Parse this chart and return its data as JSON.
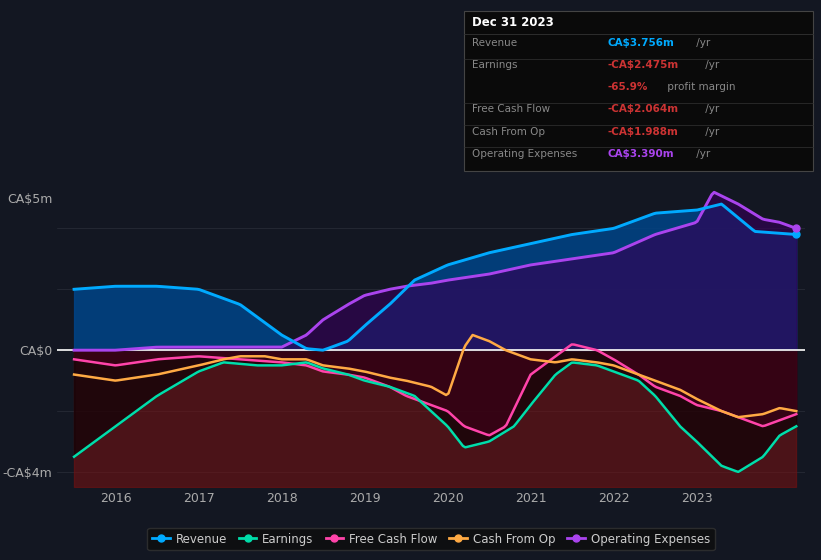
{
  "bg_color": "#131722",
  "plot_bg_color": "#131722",
  "info_box": {
    "date": "Dec 31 2023",
    "rows": [
      {
        "label": "Revenue",
        "value": "CA$3.756m",
        "value_color": "#00aaff",
        "suffix": " /yr"
      },
      {
        "label": "Earnings",
        "value": "-CA$2.475m",
        "value_color": "#cc3333",
        "suffix": " /yr"
      },
      {
        "label": "",
        "value": "-65.9%",
        "value_color": "#cc3333",
        "suffix": " profit margin"
      },
      {
        "label": "Free Cash Flow",
        "value": "-CA$2.064m",
        "value_color": "#cc3333",
        "suffix": " /yr"
      },
      {
        "label": "Cash From Op",
        "value": "-CA$1.988m",
        "value_color": "#cc3333",
        "suffix": " /yr"
      },
      {
        "label": "Operating Expenses",
        "value": "CA$3.390m",
        "value_color": "#aa44ee",
        "suffix": " /yr"
      }
    ]
  },
  "yticks": [
    -4,
    0,
    5
  ],
  "ytick_labels": [
    "-CA$4m",
    "CA$0",
    "CA$5m"
  ],
  "ylim": [
    -4.5,
    5.8
  ],
  "xlim": [
    2015.3,
    2024.3
  ],
  "xticks": [
    2016,
    2017,
    2018,
    2019,
    2020,
    2021,
    2022,
    2023
  ],
  "zero_line_color": "#ffffff",
  "grid_color": "#2a2e39",
  "revenue_color": "#00aaff",
  "earnings_color": "#00ddaa",
  "fcf_color": "#ff44aa",
  "cashop_color": "#ffaa44",
  "opex_color": "#aa44ee",
  "legend_items": [
    {
      "label": "Revenue",
      "color": "#00aaff"
    },
    {
      "label": "Earnings",
      "color": "#00ddaa"
    },
    {
      "label": "Free Cash Flow",
      "color": "#ff44aa"
    },
    {
      "label": "Cash From Op",
      "color": "#ffaa44"
    },
    {
      "label": "Operating Expenses",
      "color": "#aa44ee"
    }
  ],
  "revenue_pts": [
    [
      2015.5,
      2.0
    ],
    [
      2016.0,
      2.1
    ],
    [
      2016.5,
      2.1
    ],
    [
      2017.0,
      2.0
    ],
    [
      2017.5,
      1.5
    ],
    [
      2018.0,
      0.5
    ],
    [
      2018.3,
      0.05
    ],
    [
      2018.5,
      0.0
    ],
    [
      2018.8,
      0.3
    ],
    [
      2019.0,
      0.8
    ],
    [
      2019.3,
      1.5
    ],
    [
      2019.6,
      2.3
    ],
    [
      2020.0,
      2.8
    ],
    [
      2020.5,
      3.2
    ],
    [
      2021.0,
      3.5
    ],
    [
      2021.5,
      3.8
    ],
    [
      2022.0,
      4.0
    ],
    [
      2022.5,
      4.5
    ],
    [
      2023.0,
      4.6
    ],
    [
      2023.3,
      4.8
    ],
    [
      2023.7,
      3.9
    ],
    [
      2024.2,
      3.8
    ]
  ],
  "earnings_pts": [
    [
      2015.5,
      -3.5
    ],
    [
      2016.0,
      -2.5
    ],
    [
      2016.5,
      -1.5
    ],
    [
      2017.0,
      -0.7
    ],
    [
      2017.3,
      -0.4
    ],
    [
      2017.7,
      -0.5
    ],
    [
      2018.0,
      -0.5
    ],
    [
      2018.3,
      -0.4
    ],
    [
      2018.5,
      -0.6
    ],
    [
      2018.8,
      -0.8
    ],
    [
      2019.0,
      -1.0
    ],
    [
      2019.3,
      -1.2
    ],
    [
      2019.6,
      -1.5
    ],
    [
      2020.0,
      -2.5
    ],
    [
      2020.2,
      -3.2
    ],
    [
      2020.5,
      -3.0
    ],
    [
      2020.8,
      -2.5
    ],
    [
      2021.0,
      -1.8
    ],
    [
      2021.3,
      -0.8
    ],
    [
      2021.5,
      -0.4
    ],
    [
      2021.8,
      -0.5
    ],
    [
      2022.0,
      -0.7
    ],
    [
      2022.3,
      -1.0
    ],
    [
      2022.5,
      -1.5
    ],
    [
      2022.8,
      -2.5
    ],
    [
      2023.0,
      -3.0
    ],
    [
      2023.3,
      -3.8
    ],
    [
      2023.5,
      -4.0
    ],
    [
      2023.8,
      -3.5
    ],
    [
      2024.0,
      -2.8
    ],
    [
      2024.2,
      -2.5
    ]
  ],
  "fcf_pts": [
    [
      2015.5,
      -0.3
    ],
    [
      2016.0,
      -0.5
    ],
    [
      2016.5,
      -0.3
    ],
    [
      2017.0,
      -0.2
    ],
    [
      2017.5,
      -0.3
    ],
    [
      2018.0,
      -0.4
    ],
    [
      2018.3,
      -0.5
    ],
    [
      2018.5,
      -0.7
    ],
    [
      2018.8,
      -0.8
    ],
    [
      2019.0,
      -0.9
    ],
    [
      2019.3,
      -1.2
    ],
    [
      2019.5,
      -1.5
    ],
    [
      2019.8,
      -1.8
    ],
    [
      2020.0,
      -2.0
    ],
    [
      2020.2,
      -2.5
    ],
    [
      2020.5,
      -2.8
    ],
    [
      2020.7,
      -2.5
    ],
    [
      2021.0,
      -0.8
    ],
    [
      2021.3,
      -0.2
    ],
    [
      2021.5,
      0.2
    ],
    [
      2021.8,
      0.0
    ],
    [
      2022.0,
      -0.3
    ],
    [
      2022.3,
      -0.8
    ],
    [
      2022.5,
      -1.2
    ],
    [
      2022.8,
      -1.5
    ],
    [
      2023.0,
      -1.8
    ],
    [
      2023.3,
      -2.0
    ],
    [
      2023.5,
      -2.2
    ],
    [
      2023.8,
      -2.5
    ],
    [
      2024.0,
      -2.3
    ],
    [
      2024.2,
      -2.1
    ]
  ],
  "cashop_pts": [
    [
      2015.5,
      -0.8
    ],
    [
      2016.0,
      -1.0
    ],
    [
      2016.5,
      -0.8
    ],
    [
      2017.0,
      -0.5
    ],
    [
      2017.3,
      -0.3
    ],
    [
      2017.5,
      -0.2
    ],
    [
      2017.8,
      -0.2
    ],
    [
      2018.0,
      -0.3
    ],
    [
      2018.3,
      -0.3
    ],
    [
      2018.5,
      -0.5
    ],
    [
      2018.8,
      -0.6
    ],
    [
      2019.0,
      -0.7
    ],
    [
      2019.3,
      -0.9
    ],
    [
      2019.5,
      -1.0
    ],
    [
      2019.8,
      -1.2
    ],
    [
      2020.0,
      -1.5
    ],
    [
      2020.2,
      0.1
    ],
    [
      2020.3,
      0.5
    ],
    [
      2020.5,
      0.3
    ],
    [
      2020.7,
      0.0
    ],
    [
      2021.0,
      -0.3
    ],
    [
      2021.3,
      -0.4
    ],
    [
      2021.5,
      -0.3
    ],
    [
      2021.8,
      -0.4
    ],
    [
      2022.0,
      -0.5
    ],
    [
      2022.3,
      -0.8
    ],
    [
      2022.5,
      -1.0
    ],
    [
      2022.8,
      -1.3
    ],
    [
      2023.0,
      -1.6
    ],
    [
      2023.3,
      -2.0
    ],
    [
      2023.5,
      -2.2
    ],
    [
      2023.8,
      -2.1
    ],
    [
      2024.0,
      -1.9
    ],
    [
      2024.2,
      -2.0
    ]
  ],
  "opex_pts": [
    [
      2015.5,
      0.0
    ],
    [
      2016.0,
      0.0
    ],
    [
      2016.5,
      0.1
    ],
    [
      2017.0,
      0.1
    ],
    [
      2017.5,
      0.1
    ],
    [
      2018.0,
      0.1
    ],
    [
      2018.3,
      0.5
    ],
    [
      2018.5,
      1.0
    ],
    [
      2018.8,
      1.5
    ],
    [
      2019.0,
      1.8
    ],
    [
      2019.3,
      2.0
    ],
    [
      2019.5,
      2.1
    ],
    [
      2019.8,
      2.2
    ],
    [
      2020.0,
      2.3
    ],
    [
      2020.5,
      2.5
    ],
    [
      2021.0,
      2.8
    ],
    [
      2021.5,
      3.0
    ],
    [
      2022.0,
      3.2
    ],
    [
      2022.5,
      3.8
    ],
    [
      2023.0,
      4.2
    ],
    [
      2023.2,
      5.2
    ],
    [
      2023.5,
      4.8
    ],
    [
      2023.8,
      4.3
    ],
    [
      2024.0,
      4.2
    ],
    [
      2024.2,
      4.0
    ]
  ]
}
